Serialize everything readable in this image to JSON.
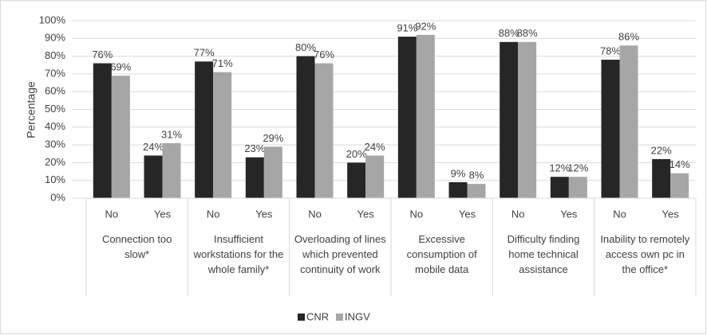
{
  "chart_data": {
    "type": "bar",
    "ylabel": "Percentage",
    "categories": [
      "No",
      "Yes",
      "No",
      "Yes",
      "No",
      "Yes",
      "No",
      "Yes",
      "No",
      "Yes",
      "No",
      "Yes"
    ],
    "groups": [
      "Connection too slow*",
      "Insufficient workstations for the whole family*",
      "Overloading of lines which prevented continuity of work",
      "Excessive consumption of mobile data",
      "Difficulty finding home technical assistance",
      "Inability to remotely access own pc in the office*"
    ],
    "series": [
      {
        "name": "CNR",
        "color": "#262626",
        "values": [
          76,
          24,
          77,
          23,
          80,
          20,
          91,
          9,
          88,
          12,
          78,
          22
        ],
        "value_labels": [
          "76%",
          "24%",
          "77%",
          "23%",
          "80%",
          "20%",
          "91%",
          "9%",
          "88%",
          "12%",
          "78%",
          "22%"
        ]
      },
      {
        "name": "INGV",
        "color": "#a6a6a6",
        "values": [
          69,
          31,
          71,
          29,
          76,
          24,
          92,
          8,
          88,
          12,
          86,
          14
        ],
        "value_labels": [
          "69%",
          "31%",
          "71%",
          "29%",
          "76%",
          "24%",
          "92%",
          "8%",
          "88%",
          "12%",
          "86%",
          "14%"
        ]
      }
    ],
    "ylim": [
      0,
      100
    ],
    "yticks": [
      {
        "value": 0,
        "label": "0%"
      },
      {
        "value": 10,
        "label": "10%"
      },
      {
        "value": 20,
        "label": "20%"
      },
      {
        "value": 30,
        "label": "30%"
      },
      {
        "value": 40,
        "label": "40%"
      },
      {
        "value": 50,
        "label": "50%"
      },
      {
        "value": 60,
        "label": "60%"
      },
      {
        "value": 70,
        "label": "70%"
      },
      {
        "value": 80,
        "label": "80%"
      },
      {
        "value": 90,
        "label": "90%"
      },
      {
        "value": 100,
        "label": "100%"
      }
    ],
    "grid": true,
    "legend": "bottom"
  }
}
